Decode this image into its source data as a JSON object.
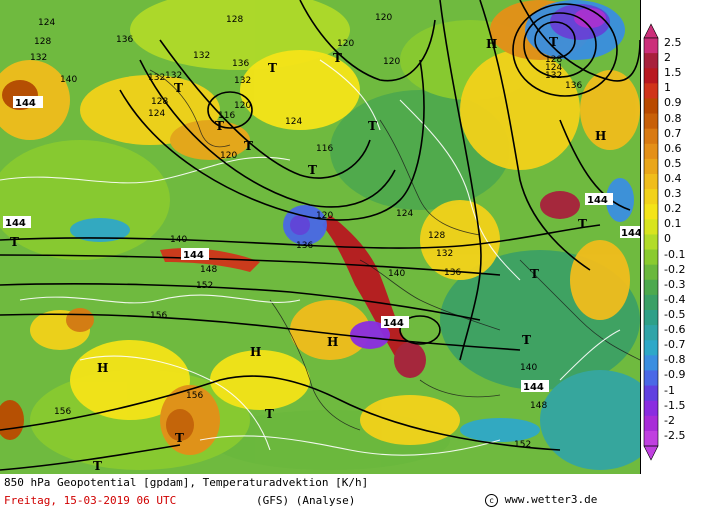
{
  "map": {
    "title": "850 hPa Geopotential [gpdam], Temperaturadvektion [K/h]",
    "date": "Freitag, 15-03-2019  06 UTC",
    "model": "(GFS)  (Analyse)",
    "credit": "www.wetter3.de",
    "copyright_icon": "copyright-icon"
  },
  "colorbar": {
    "labels": [
      "2.5",
      "2",
      "1.5",
      "1",
      "0.9",
      "0.8",
      "0.7",
      "0.6",
      "0.5",
      "0.4",
      "0.3",
      "0.2",
      "0.1",
      "0",
      "-0.1",
      "-0.2",
      "-0.3",
      "-0.4",
      "-0.5",
      "-0.6",
      "-0.7",
      "-0.8",
      "-0.9",
      "-1",
      "-1.5",
      "-2",
      "-2.5"
    ],
    "colors": [
      "#cc2f7a",
      "#a8203c",
      "#b81820",
      "#d0341a",
      "#b94a00",
      "#c86008",
      "#d97a12",
      "#e49018",
      "#eaa61a",
      "#f0bd1c",
      "#f2d21a",
      "#f4e418",
      "#d8e41e",
      "#b2dc28",
      "#8acb2f",
      "#6ab83d",
      "#4da94e",
      "#3aa066",
      "#2fa088",
      "#30a4a8",
      "#2ea8c8",
      "#3a8ee0",
      "#4a68e6",
      "#6040e0",
      "#8a2ce0",
      "#a82cd8",
      "#c040e0"
    ]
  },
  "contour_labels": [
    "120",
    "124",
    "128",
    "132",
    "136",
    "140",
    "144",
    "148",
    "152",
    "156"
  ],
  "pressure_centers": {
    "high": "H",
    "low": "T"
  }
}
